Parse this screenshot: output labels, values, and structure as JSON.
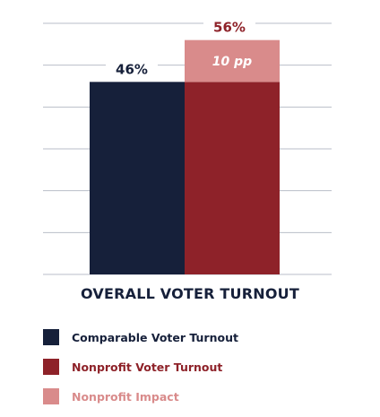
{
  "chart_data": {
    "type": "bar",
    "title": "OVERALL VOTER TURNOUT",
    "categories": [
      "Comparable Voter Turnout",
      "Nonprofit Voter Turnout"
    ],
    "series": [
      {
        "name": "Comparable Voter Turnout",
        "value": 46,
        "label": "46%",
        "color": "#16203a"
      },
      {
        "name": "Nonprofit Voter Turnout",
        "value": 46,
        "color": "#8e2229"
      },
      {
        "name": "Nonprofit Impact",
        "value": 10,
        "label": "10 pp",
        "color": "#d98b8b"
      }
    ],
    "total_label": "56%",
    "ylim": [
      0,
      60
    ],
    "grid": true,
    "legend_position": "bottom-left"
  },
  "legend": [
    {
      "label": "Comparable Voter Turnout",
      "color": "#16203a"
    },
    {
      "label": "Nonprofit Voter Turnout",
      "color": "#8e2229"
    },
    {
      "label": "Nonprofit Impact",
      "color": "#d98b8b"
    }
  ]
}
